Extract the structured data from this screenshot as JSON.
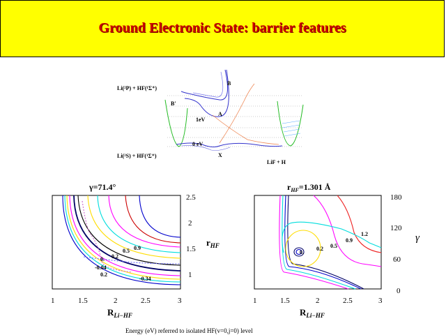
{
  "title": "Ground Electronic State: barrier features",
  "diagram": {
    "asymptote_top": "Li(²P) + HF(¹Σ⁺)",
    "asymptote_bottom": "Li(²S) + HF(¹Σ⁺)",
    "product": "LiF + H",
    "labels": {
      "B": "B",
      "Bprime": "B'",
      "A": "A",
      "X": "X",
      "one_ev": "1eV",
      "zero_ev": "0 eV"
    }
  },
  "left_plot": {
    "title": "γ=71.4°",
    "xlabel": "R",
    "xlabel_sub": "Li−HF",
    "ylabel": "r",
    "ylabel_sub": "HF",
    "xticks": [
      "1",
      "1.5",
      "2",
      "2.5",
      "3"
    ],
    "yticks": [
      "2.5",
      "2",
      "1.5",
      "1"
    ],
    "contour_labels": [
      "0.2",
      "0.5",
      "0.9",
      "0.",
      "-0.04",
      "0.2",
      "-0.34"
    ]
  },
  "right_plot": {
    "title": "r",
    "title_sub": "HF",
    "title_value": "=1.301 Å",
    "xlabel": "R",
    "xlabel_sub": "Li−HF",
    "ylabel": "γ",
    "xticks": [
      "1",
      "1.5",
      "2",
      "2.5",
      "3"
    ],
    "yticks": [
      "180",
      "120",
      "60",
      "0"
    ],
    "contour_labels": [
      "0.",
      "0.2",
      "0.5",
      "0.9",
      "1.2"
    ]
  },
  "footer": "Energy (eV) referred to isolated HF(v=0,j=0) level",
  "colors": {
    "title_bg": "#ffff00",
    "title_text": "#cc0000"
  }
}
